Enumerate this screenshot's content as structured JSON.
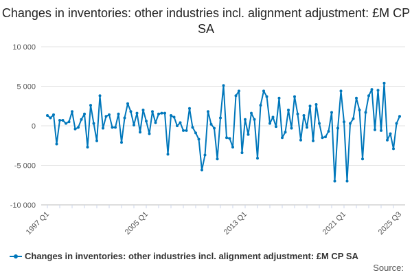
{
  "chart_data": {
    "type": "line",
    "title": "Changes in inventories: other industries incl. alignment adjustment: £M CP SA",
    "x_start": "1997 Q1",
    "x_end": "2025 Q3",
    "x_tick_labels": [
      "1997 Q1",
      "2005 Q1",
      "2013 Q1",
      "2021 Q1",
      "2025 Q3"
    ],
    "y_tick_labels": [
      "10 000",
      "5 000",
      "0",
      "-5 000",
      "-10 000"
    ],
    "y_ticks": [
      10000,
      5000,
      0,
      -5000,
      -10000
    ],
    "ylim": [
      -10000,
      10000
    ],
    "grid": true,
    "legend_position": "bottom",
    "series": [
      {
        "name": "Changes in inventories: other industries incl. alignment adjustment: £M CP SA",
        "color": "#0077bb",
        "values": [
          1300,
          1000,
          1400,
          -2300,
          700,
          700,
          300,
          500,
          1800,
          -400,
          -200,
          800,
          1500,
          -2700,
          2600,
          300,
          -1900,
          3800,
          -300,
          1200,
          1400,
          -200,
          -200,
          1500,
          -2100,
          1000,
          2800,
          1800,
          100,
          1600,
          -800,
          2000,
          600,
          -1000,
          1800,
          400,
          1500,
          1600,
          1600,
          -3600,
          1300,
          1100,
          0,
          400,
          -600,
          -600,
          2200,
          -200,
          -900,
          -1700,
          -5600,
          -3700,
          1800,
          200,
          -300,
          -4200,
          1000,
          5100,
          -1500,
          -1600,
          -2700,
          3800,
          4400,
          -3400,
          800,
          -1100,
          1600,
          800,
          -4100,
          2600,
          4400,
          3700,
          300,
          1100,
          -100,
          3500,
          -1500,
          -800,
          2000,
          -300,
          3700,
          1500,
          -1800,
          1300,
          -200,
          2500,
          -1900,
          2700,
          300,
          -1500,
          -1400,
          -700,
          1700,
          -7000,
          -300,
          4400,
          500,
          -7000,
          300,
          900,
          3500,
          2000,
          -4200,
          1700,
          3800,
          4600,
          -500,
          4500,
          -600,
          5400,
          -1800,
          -1000,
          -2900,
          300,
          1200
        ]
      }
    ]
  },
  "source_label": "Source:"
}
